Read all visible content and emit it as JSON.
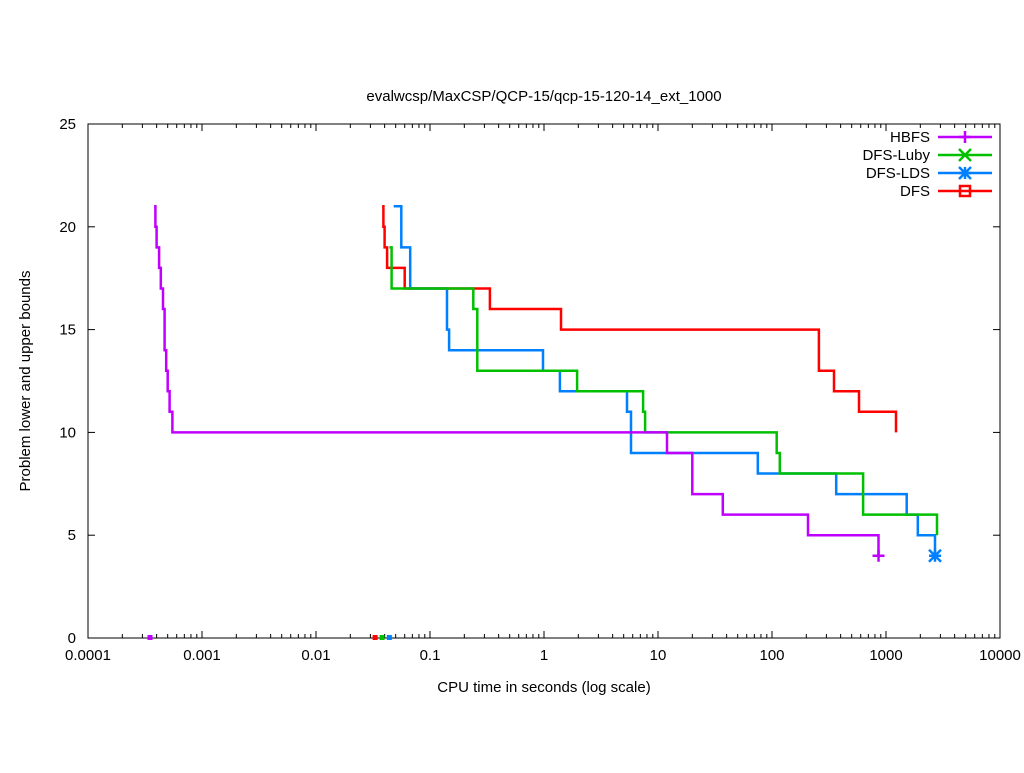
{
  "chart_data": {
    "type": "line",
    "title": "evalwcsp/MaxCSP/QCP-15/qcp-15-120-14_ext_1000",
    "xlabel": "CPU time in seconds (log scale)",
    "ylabel": "Problem lower and upper bounds",
    "x_scale": "log",
    "xlim": [
      0.0001,
      10000
    ],
    "ylim": [
      0,
      25
    ],
    "x_ticks": [
      0.0001,
      0.001,
      0.01,
      0.1,
      1,
      10,
      100,
      1000,
      10000
    ],
    "x_tick_labels": [
      "0.0001",
      "0.001",
      "0.01",
      "0.1",
      "1",
      "10",
      "100",
      "1000",
      "10000"
    ],
    "y_ticks": [
      0,
      5,
      10,
      15,
      20,
      25
    ],
    "y_tick_labels": [
      "0",
      "5",
      "10",
      "15",
      "20",
      "25"
    ],
    "grid": false,
    "legend_position": "top-right",
    "series": [
      {
        "name": "HBFS",
        "color": "#c000ff",
        "marker": "plus",
        "upper_bound": [
          [
            0.00038,
            21
          ],
          [
            0.00039,
            20
          ],
          [
            0.0004,
            19
          ],
          [
            0.00042,
            18
          ],
          [
            0.000435,
            17
          ],
          [
            0.000455,
            16
          ],
          [
            0.00047,
            14
          ],
          [
            0.000485,
            13
          ],
          [
            0.0005,
            12
          ],
          [
            0.00052,
            11
          ],
          [
            0.00055,
            10
          ],
          [
            12,
            9
          ],
          [
            20,
            7
          ],
          [
            37,
            6
          ],
          [
            207,
            5
          ],
          [
            860,
            4
          ]
        ],
        "end_marker_at": [
          860,
          4
        ],
        "lower_bound_point": [
          0.00035,
          0
        ]
      },
      {
        "name": "DFS-Luby",
        "color": "#00c000",
        "marker": "cross",
        "upper_bound": [
          [
            0.044,
            19
          ],
          [
            0.046,
            17
          ],
          [
            0.24,
            16
          ],
          [
            0.26,
            13
          ],
          [
            1.95,
            12
          ],
          [
            7.4,
            11
          ],
          [
            7.7,
            10
          ],
          [
            110,
            9
          ],
          [
            117,
            8
          ],
          [
            630,
            6
          ],
          [
            2800,
            5
          ]
        ],
        "end_marker_at": null,
        "lower_bound_point": [
          0.038,
          0
        ]
      },
      {
        "name": "DFS-LDS",
        "color": "#0080ff",
        "marker": "asterisk",
        "upper_bound": [
          [
            0.048,
            21
          ],
          [
            0.056,
            19
          ],
          [
            0.067,
            17
          ],
          [
            0.141,
            15
          ],
          [
            0.147,
            14
          ],
          [
            0.98,
            13
          ],
          [
            1.38,
            12
          ],
          [
            5.35,
            11
          ],
          [
            5.8,
            9
          ],
          [
            75,
            8
          ],
          [
            366,
            7
          ],
          [
            1520,
            6
          ],
          [
            1900,
            5
          ],
          [
            2690,
            4
          ]
        ],
        "end_marker_at": [
          2690,
          4
        ],
        "lower_bound_point": [
          0.044,
          0
        ]
      },
      {
        "name": "DFS",
        "color": "#ff0000",
        "marker": "square-open",
        "upper_bound": [
          [
            0.038,
            21
          ],
          [
            0.039,
            20
          ],
          [
            0.04,
            19
          ],
          [
            0.042,
            18
          ],
          [
            0.06,
            17
          ],
          [
            0.335,
            16
          ],
          [
            1.41,
            15
          ],
          [
            258,
            13
          ],
          [
            350,
            12
          ],
          [
            580,
            11
          ],
          [
            1225,
            10
          ]
        ],
        "end_marker_at": null,
        "lower_bound_point": [
          0.033,
          0
        ]
      }
    ]
  }
}
